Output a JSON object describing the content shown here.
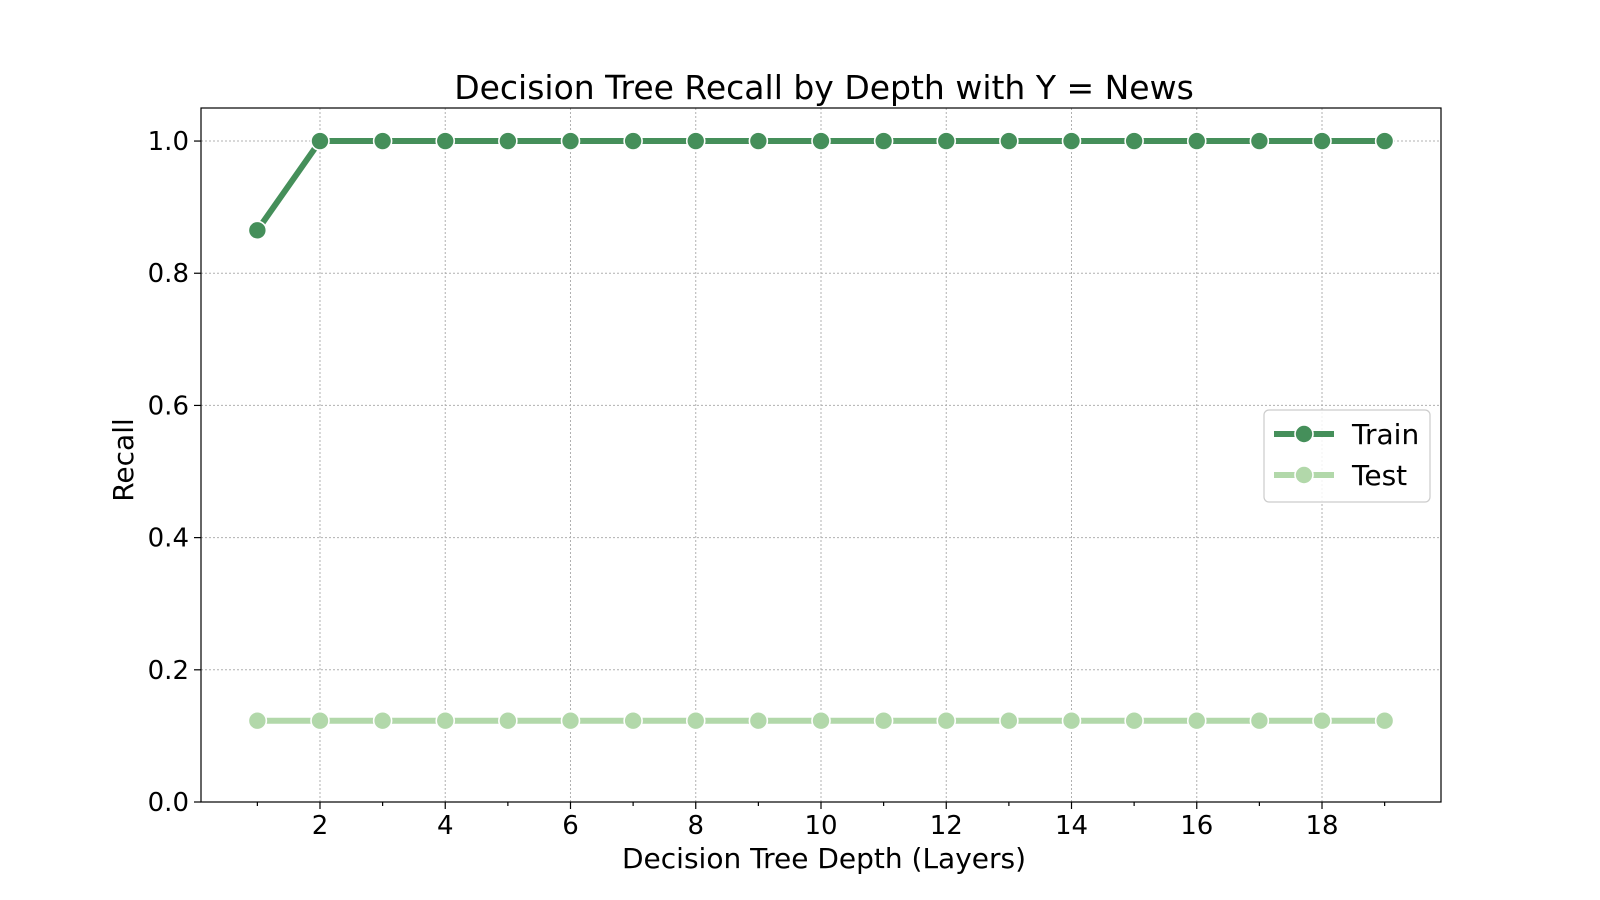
{
  "chart_data": {
    "type": "line",
    "title": "Decision Tree Recall by Depth with Y = News",
    "xlabel": "Decision Tree Depth (Layers)",
    "ylabel": "Recall",
    "x": [
      1,
      2,
      3,
      4,
      5,
      6,
      7,
      8,
      9,
      10,
      11,
      12,
      13,
      14,
      15,
      16,
      17,
      18,
      19
    ],
    "xlim": [
      0.1,
      19.9
    ],
    "ylim": [
      0.0,
      1.05
    ],
    "xticks": [
      2,
      4,
      6,
      8,
      10,
      12,
      14,
      16,
      18
    ],
    "xticks_minor": [
      1,
      3,
      5,
      7,
      9,
      11,
      13,
      15,
      17,
      19
    ],
    "yticks": [
      0.0,
      0.2,
      0.4,
      0.6,
      0.8,
      1.0
    ],
    "ytick_labels": [
      "0.0",
      "0.2",
      "0.4",
      "0.6",
      "0.8",
      "1.0"
    ],
    "grid": true,
    "legend_position": "center-right",
    "series": [
      {
        "name": "Train",
        "color": "#458f5a",
        "values": [
          0.865,
          1.0,
          1.0,
          1.0,
          1.0,
          1.0,
          1.0,
          1.0,
          1.0,
          1.0,
          1.0,
          1.0,
          1.0,
          1.0,
          1.0,
          1.0,
          1.0,
          1.0,
          1.0
        ]
      },
      {
        "name": "Test",
        "color": "#b2d8aa",
        "values": [
          0.123,
          0.123,
          0.123,
          0.123,
          0.123,
          0.123,
          0.123,
          0.123,
          0.123,
          0.123,
          0.123,
          0.123,
          0.123,
          0.123,
          0.123,
          0.123,
          0.123,
          0.123,
          0.123
        ]
      }
    ]
  }
}
